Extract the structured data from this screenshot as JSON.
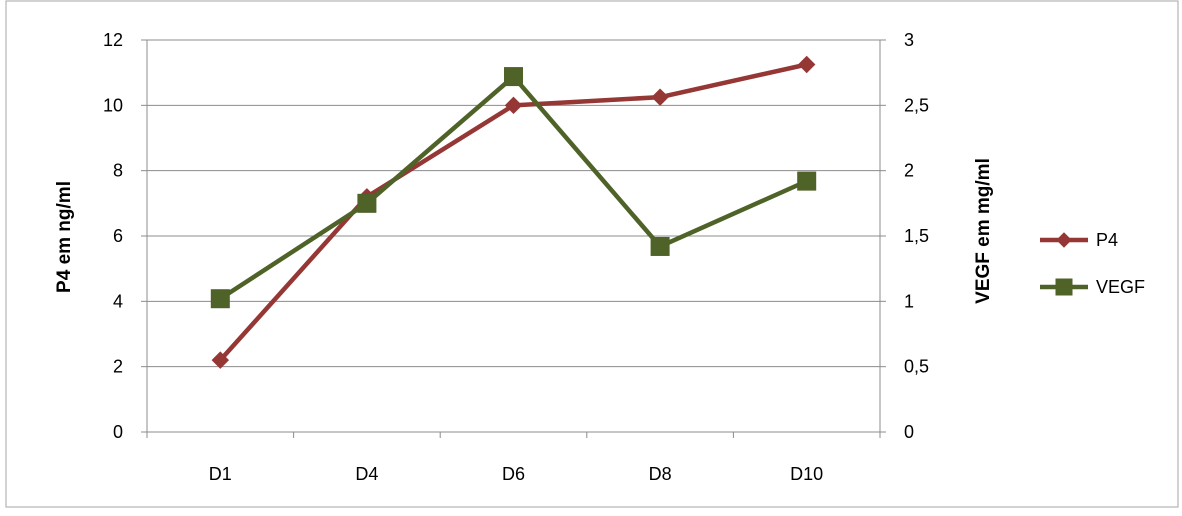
{
  "chart_data": {
    "type": "line",
    "title": "",
    "categories": [
      "D1",
      "D4",
      "D6",
      "D8",
      "D10"
    ],
    "left_axis": {
      "label": "P4 em ng/ml",
      "range": [
        0,
        12
      ],
      "ticks": [
        "0",
        "2",
        "4",
        "6",
        "8",
        "10",
        "12"
      ],
      "tick_values": [
        0,
        2,
        4,
        6,
        8,
        10,
        12
      ]
    },
    "right_axis": {
      "label": "VEGF em mg/ml",
      "range": [
        0,
        3
      ],
      "ticks": [
        "0",
        "0,5",
        "1",
        "1,5",
        "2",
        "2,5",
        "3"
      ],
      "tick_values": [
        0,
        0.5,
        1,
        1.5,
        2,
        2.5,
        3
      ]
    },
    "series": [
      {
        "name": "P4",
        "axis": "left",
        "marker": "diamond",
        "color": "#953735",
        "values": [
          2.2,
          7.2,
          10.0,
          10.25,
          11.25
        ]
      },
      {
        "name": "VEGF",
        "axis": "right",
        "marker": "square",
        "color": "#4F6228",
        "values": [
          1.02,
          1.75,
          2.72,
          1.42,
          1.92
        ]
      }
    ],
    "grid": true,
    "legend_position": "right"
  }
}
